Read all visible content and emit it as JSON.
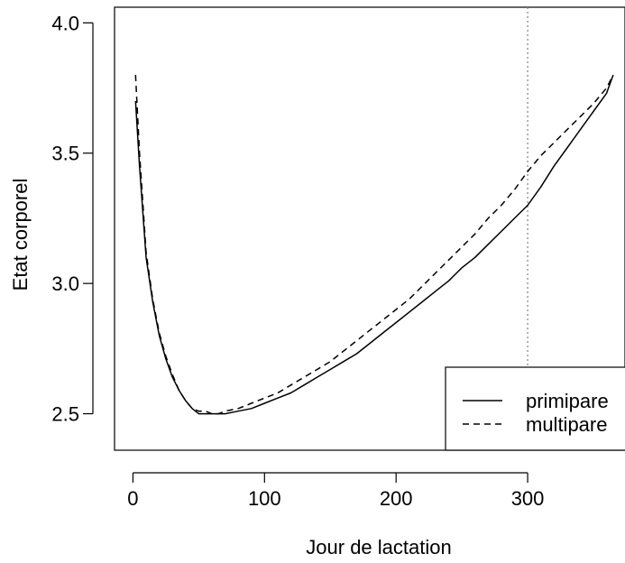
{
  "chart_data": {
    "type": "line",
    "title": "",
    "xlabel": "Jour de lactation",
    "ylabel": "Etat corporel",
    "xlim": [
      -14,
      374
    ],
    "ylim": [
      2.36,
      4.06
    ],
    "xticks": [
      0,
      100,
      200,
      300
    ],
    "xtick_labels": [
      "0",
      "100",
      "200",
      "300"
    ],
    "yticks": [
      2.5,
      3.0,
      3.5,
      4.0
    ],
    "ytick_labels": [
      "2.5",
      "3.0",
      "3.5",
      "4.0"
    ],
    "vline": {
      "x": 300,
      "style": "dotted",
      "color": "#808080"
    },
    "legend": {
      "position": "bottom-right",
      "entries": [
        "primipare",
        "multipare"
      ]
    },
    "grid": false,
    "series": [
      {
        "name": "primipare",
        "line_style": "solid",
        "x": [
          2,
          5,
          10,
          15,
          20,
          25,
          30,
          35,
          40,
          45,
          50,
          55,
          60,
          65,
          70,
          80,
          90,
          100,
          110,
          120,
          130,
          140,
          150,
          160,
          170,
          180,
          190,
          200,
          210,
          220,
          230,
          240,
          250,
          260,
          270,
          280,
          290,
          300,
          310,
          320,
          330,
          340,
          350,
          360,
          365
        ],
        "values": [
          3.7,
          3.45,
          3.1,
          2.93,
          2.8,
          2.71,
          2.64,
          2.59,
          2.55,
          2.52,
          2.5,
          2.5,
          2.5,
          2.5,
          2.5,
          2.51,
          2.52,
          2.54,
          2.56,
          2.58,
          2.61,
          2.64,
          2.67,
          2.7,
          2.73,
          2.77,
          2.81,
          2.85,
          2.89,
          2.93,
          2.97,
          3.01,
          3.06,
          3.1,
          3.15,
          3.2,
          3.25,
          3.3,
          3.37,
          3.45,
          3.52,
          3.59,
          3.66,
          3.73,
          3.8
        ]
      },
      {
        "name": "multipare",
        "line_style": "dashed",
        "x": [
          2,
          5,
          10,
          15,
          20,
          25,
          30,
          35,
          40,
          45,
          50,
          55,
          60,
          65,
          70,
          80,
          90,
          100,
          110,
          120,
          130,
          140,
          150,
          160,
          170,
          180,
          190,
          200,
          210,
          220,
          230,
          240,
          250,
          260,
          270,
          280,
          290,
          300,
          310,
          320,
          330,
          340,
          350,
          360,
          365
        ],
        "values": [
          3.8,
          3.5,
          3.12,
          2.94,
          2.81,
          2.72,
          2.65,
          2.59,
          2.55,
          2.52,
          2.51,
          2.51,
          2.5,
          2.5,
          2.51,
          2.52,
          2.54,
          2.56,
          2.58,
          2.61,
          2.64,
          2.67,
          2.7,
          2.74,
          2.78,
          2.82,
          2.86,
          2.9,
          2.94,
          2.99,
          3.04,
          3.09,
          3.14,
          3.19,
          3.25,
          3.3,
          3.36,
          3.43,
          3.49,
          3.54,
          3.59,
          3.64,
          3.69,
          3.75,
          3.8
        ]
      }
    ]
  }
}
